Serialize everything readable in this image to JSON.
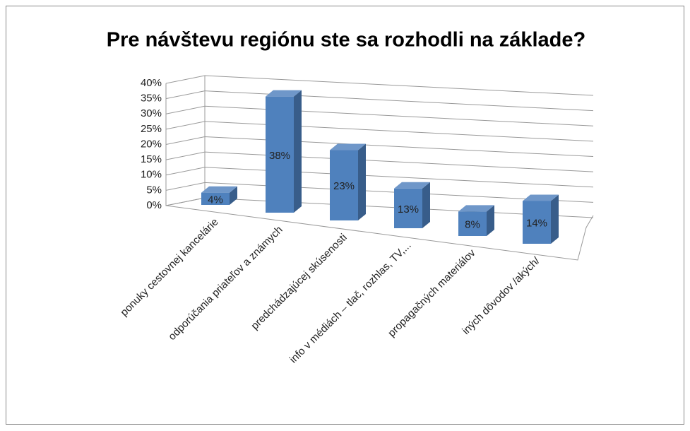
{
  "chart_data": {
    "type": "bar3d",
    "title": "Pre návštevu regiónu ste sa rozhodli na základe?",
    "categories": [
      "ponuky cestovnej kancelárie",
      "odporúčania priateľov a známych",
      "predchádzajúcej skúsenosti",
      "info v médiách – tlač, rozhlas, TV,...",
      "propagačných materiálov",
      "iných dôvodov /akých/"
    ],
    "values": [
      4,
      38,
      23,
      13,
      8,
      14
    ],
    "value_labels": [
      "4%",
      "38%",
      "23%",
      "13%",
      "8%",
      "14%"
    ],
    "color": "#4f81bd",
    "ylim": [
      0,
      40
    ],
    "yticks": [
      {
        "value": 0,
        "label": "0%"
      },
      {
        "value": 5,
        "label": "5%"
      },
      {
        "value": 10,
        "label": "10%"
      },
      {
        "value": 15,
        "label": "15%"
      },
      {
        "value": 20,
        "label": "20%"
      },
      {
        "value": 25,
        "label": "25%"
      },
      {
        "value": 30,
        "label": "30%"
      },
      {
        "value": 35,
        "label": "35%"
      },
      {
        "value": 40,
        "label": "40%"
      }
    ],
    "grid": true
  }
}
